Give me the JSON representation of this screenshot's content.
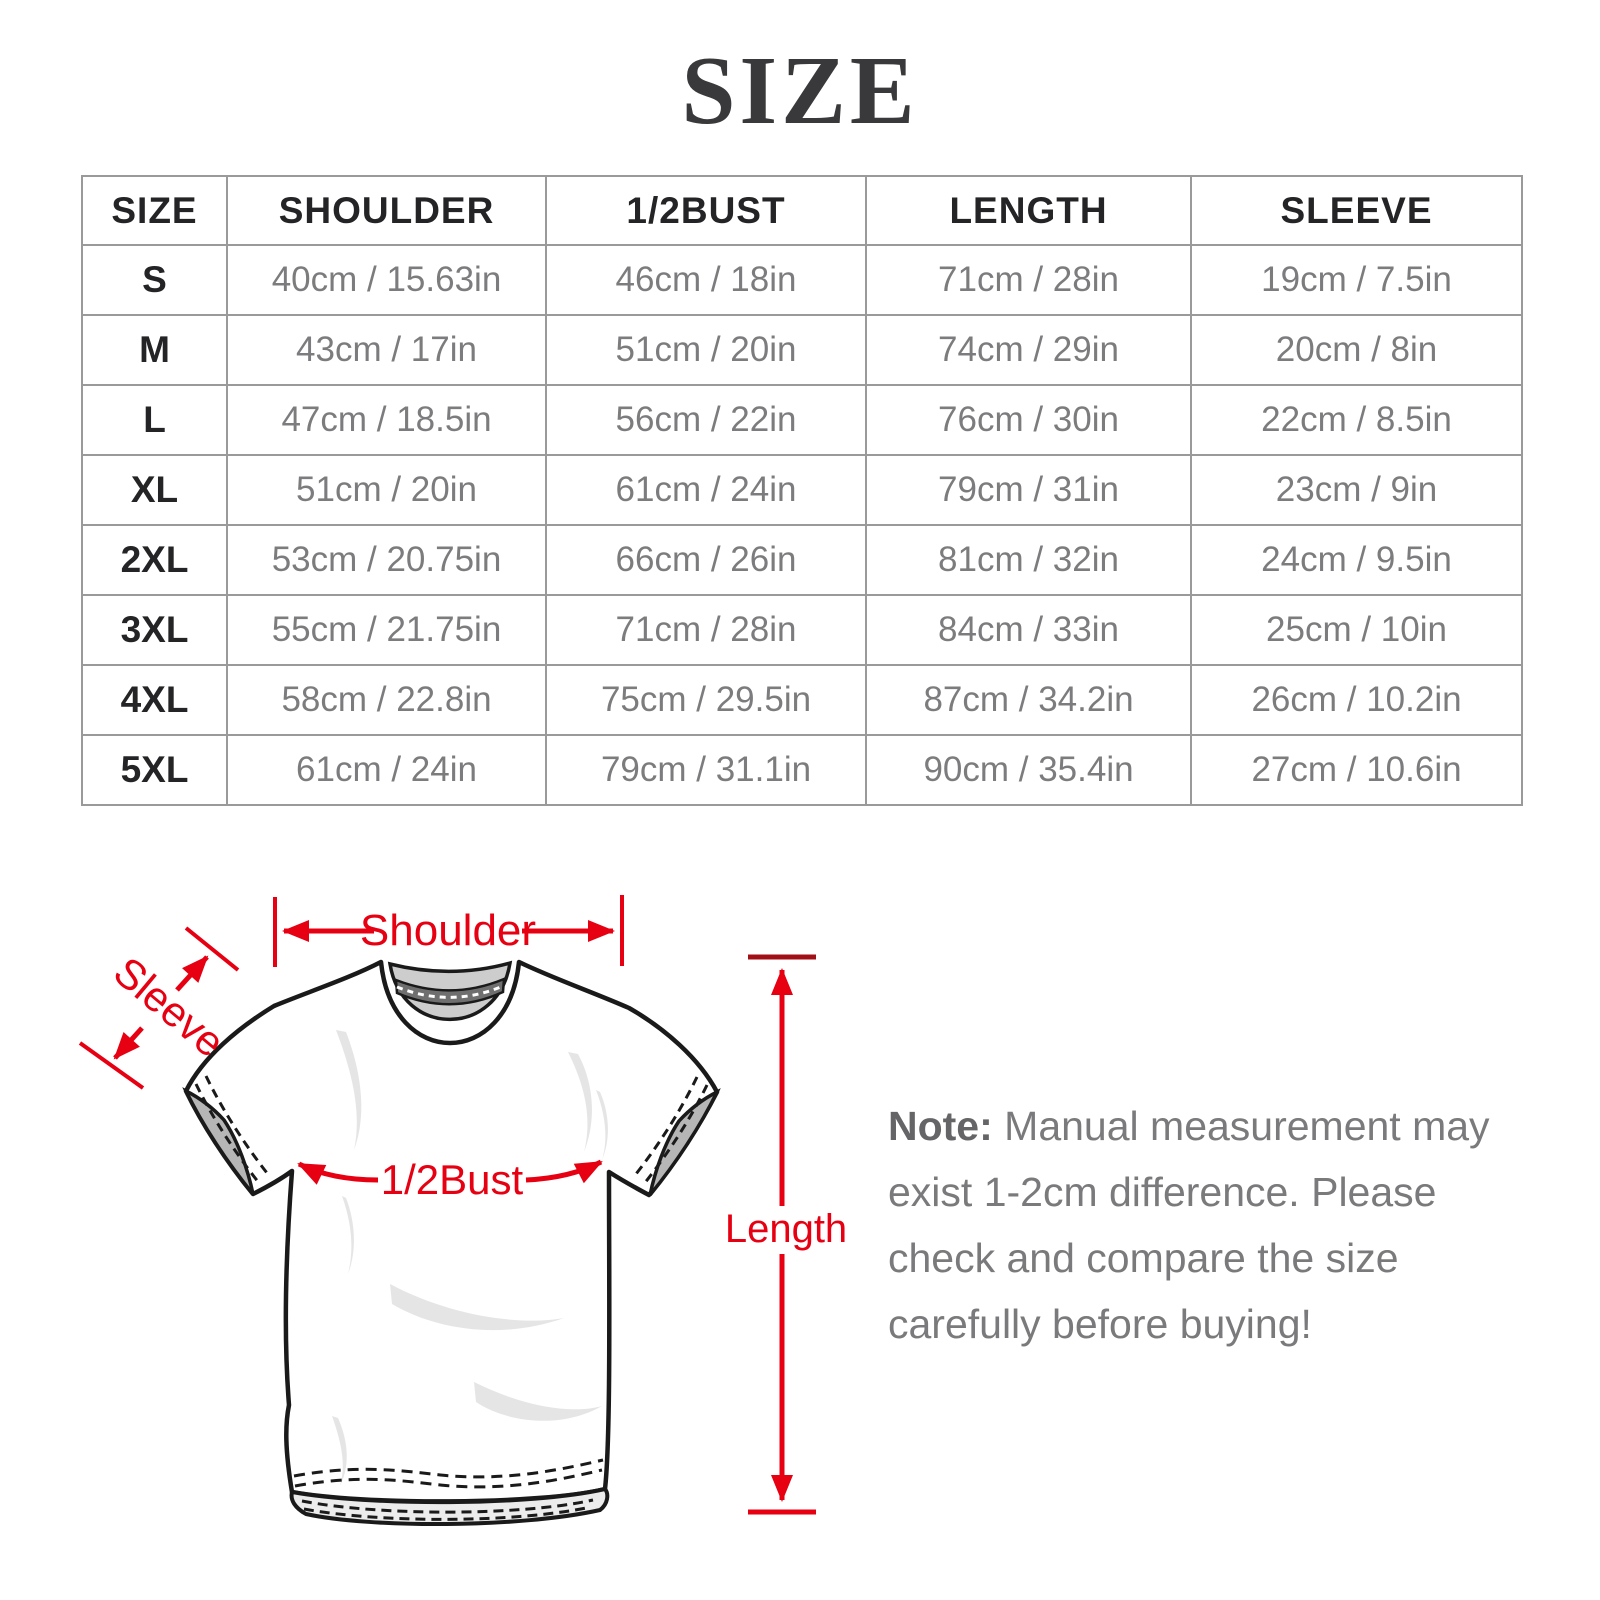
{
  "title": "SIZE",
  "table": {
    "headers": [
      "SIZE",
      "SHOULDER",
      "1/2BUST",
      "LENGTH",
      "SLEEVE"
    ],
    "rows": [
      [
        "S",
        "40cm / 15.63in",
        "46cm / 18in",
        "71cm / 28in",
        "19cm / 7.5in"
      ],
      [
        "M",
        "43cm / 17in",
        "51cm / 20in",
        "74cm / 29in",
        "20cm / 8in"
      ],
      [
        "L",
        "47cm / 18.5in",
        "56cm / 22in",
        "76cm / 30in",
        "22cm / 8.5in"
      ],
      [
        "XL",
        "51cm / 20in",
        "61cm / 24in",
        "79cm / 31in",
        "23cm / 9in"
      ],
      [
        "2XL",
        "53cm / 20.75in",
        "66cm / 26in",
        "81cm / 32in",
        "24cm / 9.5in"
      ],
      [
        "3XL",
        "55cm / 21.75in",
        "71cm / 28in",
        "84cm / 33in",
        "25cm / 10in"
      ],
      [
        "4XL",
        "58cm / 22.8in",
        "75cm / 29.5in",
        "87cm / 34.2in",
        "26cm / 10.2in"
      ],
      [
        "5XL",
        "61cm / 24in",
        "79cm / 31.1in",
        "90cm / 35.4in",
        "27cm / 10.6in"
      ]
    ]
  },
  "diagram": {
    "labels": {
      "shoulder": "Shoulder",
      "sleeve": "Sleeve",
      "half_bust": "1/2Bust",
      "length": "Length"
    },
    "colors": {
      "annotation_red": "#e60012",
      "tick_dark_red": "#a21016",
      "outline_black": "#1a1a1a",
      "collar_gray": "#cdcdcd",
      "cuff_gray": "#b6b6b6",
      "wrinkle_gray": "#e5e5e5"
    }
  },
  "note": {
    "label": "Note:",
    "text": "Manual measurement may\nexist 1-2cm difference. Please\ncheck and compare the size\ncarefully before buying!"
  }
}
